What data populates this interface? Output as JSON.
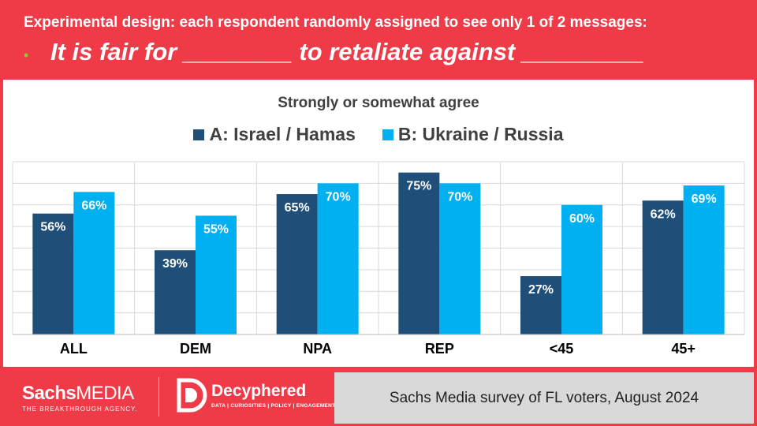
{
  "header": {
    "subtitle": "Experimental design: each respondent randomly assigned to see only 1 of 2 messages:",
    "bullet": "•",
    "headline": "It is fair for ________ to retaliate against _________"
  },
  "chart_data": {
    "type": "bar",
    "title": "Strongly or somewhat agree",
    "categories": [
      "ALL",
      "DEM",
      "NPA",
      "REP",
      "<45",
      "45+"
    ],
    "series": [
      {
        "name": "A: Israel / Hamas",
        "values": [
          56,
          39,
          65,
          75,
          27,
          62
        ],
        "labels": [
          "56%",
          "39%",
          "65%",
          "75%",
          "27%",
          "62%"
        ],
        "color": "#1f4e79"
      },
      {
        "name": "B: Ukraine / Russia",
        "values": [
          66,
          55,
          70,
          70,
          60,
          69
        ],
        "labels": [
          "66%",
          "55%",
          "70%",
          "70%",
          "60%",
          "69%"
        ],
        "color": "#00b0f0"
      }
    ],
    "ylim": [
      0,
      80
    ],
    "grid": true,
    "legend": "top-center",
    "xlabel": "",
    "ylabel": ""
  },
  "footer": {
    "logo_sachs_bold": "Sachs",
    "logo_sachs_media": "MEDIA",
    "logo_tagline": "THE BREAKTHROUGH AGENCY.",
    "decyphered_name": "Decyphered",
    "decyphered_tagline": "DATA | CURIOSITIES | POLICY | ENGAGEMENT",
    "source": "Sachs Media survey of FL voters, August 2024"
  }
}
